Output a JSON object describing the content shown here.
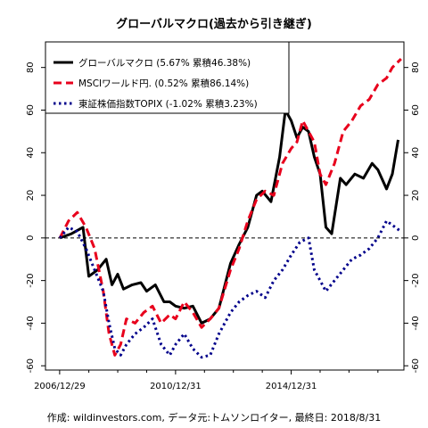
{
  "title": "グローバルマクロ(過去から引き継ぎ)",
  "caption": "作成: wildinvestors.com, データ元:トムソンロイター, 最終日: 2018/8/31",
  "colors": {
    "global_macro": "#000000",
    "msci_world": "#e8001c",
    "topix": "#00008b",
    "zero_line": "#000000"
  },
  "chart_data": {
    "type": "line",
    "x_tick_labels": [
      "2006/12/29",
      "2010/12/31",
      "2014/12/31"
    ],
    "x_tick_years": [
      2006.99,
      2011.0,
      2015.0
    ],
    "x_range": [
      2006.5,
      2018.9
    ],
    "y_range": [
      -62,
      92
    ],
    "y_ticks": [
      -60,
      -40,
      -20,
      0,
      20,
      40,
      60,
      80
    ],
    "y_tick_labels": [
      "-60",
      "-40",
      "-20",
      "0",
      "20",
      "40",
      "60",
      "80"
    ],
    "reference_line": 0,
    "grid": false,
    "legend_position": "top-left",
    "legend": [
      "グローバルマクロ (5.67% 累積46.38%)",
      "MSCIワールド円. (0.52% 累積86.14%)",
      "東証株価指数TOPIX (-1.02% 累積3.23%)"
    ],
    "series": [
      {
        "name": "グローバルマクロ (5.67% 累積46.38%)",
        "style": "solid",
        "x": [
          2007.0,
          2007.4,
          2007.8,
          2008.0,
          2008.3,
          2008.6,
          2008.8,
          2009.0,
          2009.2,
          2009.5,
          2009.8,
          2010.0,
          2010.3,
          2010.6,
          2010.8,
          2011.0,
          2011.3,
          2011.6,
          2011.9,
          2012.2,
          2012.5,
          2012.9,
          2013.2,
          2013.5,
          2013.8,
          2014.0,
          2014.3,
          2014.6,
          2014.8,
          2015.0,
          2015.2,
          2015.4,
          2015.6,
          2015.8,
          2016.0,
          2016.2,
          2016.4,
          2016.7,
          2016.9,
          2017.2,
          2017.5,
          2017.8,
          2018.0,
          2018.3,
          2018.5,
          2018.7
        ],
        "y": [
          0,
          2,
          5,
          -18,
          -15,
          -10,
          -22,
          -17,
          -24,
          -22,
          -21,
          -25,
          -22,
          -30,
          -30,
          -32,
          -33,
          -32,
          -40,
          -38,
          -33,
          -12,
          -3,
          5,
          20,
          22,
          17,
          38,
          60,
          55,
          47,
          52,
          50,
          38,
          30,
          5,
          2,
          28,
          25,
          30,
          28,
          35,
          32,
          23,
          30,
          46
        ]
      },
      {
        "name": "MSCIワールド円. (0.52% 累積86.14%)",
        "style": "dashed",
        "x": [
          2007.0,
          2007.3,
          2007.6,
          2007.9,
          2008.2,
          2008.5,
          2008.7,
          2008.9,
          2009.1,
          2009.3,
          2009.6,
          2009.9,
          2010.2,
          2010.5,
          2010.8,
          2011.0,
          2011.3,
          2011.6,
          2011.9,
          2012.2,
          2012.5,
          2012.9,
          2013.2,
          2013.5,
          2013.8,
          2014.1,
          2014.4,
          2014.7,
          2015.0,
          2015.2,
          2015.4,
          2015.6,
          2015.8,
          2016.0,
          2016.2,
          2016.5,
          2016.8,
          2017.1,
          2017.4,
          2017.7,
          2018.0,
          2018.3,
          2018.5,
          2018.8
        ],
        "y": [
          0,
          8,
          12,
          5,
          -5,
          -25,
          -45,
          -55,
          -50,
          -38,
          -40,
          -35,
          -32,
          -40,
          -36,
          -38,
          -30,
          -35,
          -42,
          -38,
          -33,
          -15,
          -5,
          8,
          18,
          22,
          20,
          35,
          42,
          45,
          55,
          50,
          45,
          30,
          25,
          35,
          50,
          55,
          62,
          65,
          72,
          75,
          80,
          84
        ]
      },
      {
        "name": "東証株価指数TOPIX (-1.02% 累積3.23%)",
        "style": "dotted",
        "x": [
          2007.0,
          2007.3,
          2007.6,
          2007.9,
          2008.2,
          2008.5,
          2008.7,
          2008.9,
          2009.1,
          2009.3,
          2009.6,
          2009.9,
          2010.2,
          2010.5,
          2010.8,
          2011.0,
          2011.3,
          2011.6,
          2011.9,
          2012.2,
          2012.5,
          2012.9,
          2013.2,
          2013.5,
          2013.8,
          2014.1,
          2014.4,
          2014.7,
          2015.0,
          2015.3,
          2015.6,
          2015.8,
          2016.0,
          2016.2,
          2016.5,
          2016.8,
          2017.1,
          2017.4,
          2017.7,
          2018.0,
          2018.3,
          2018.6,
          2018.8
        ],
        "y": [
          0,
          5,
          3,
          -5,
          -15,
          -25,
          -40,
          -52,
          -55,
          -50,
          -45,
          -42,
          -38,
          -50,
          -55,
          -50,
          -45,
          -52,
          -56,
          -55,
          -45,
          -35,
          -30,
          -27,
          -25,
          -28,
          -20,
          -15,
          -8,
          -2,
          0,
          -15,
          -20,
          -25,
          -20,
          -15,
          -10,
          -8,
          -5,
          0,
          8,
          5,
          3
        ]
      }
    ]
  }
}
